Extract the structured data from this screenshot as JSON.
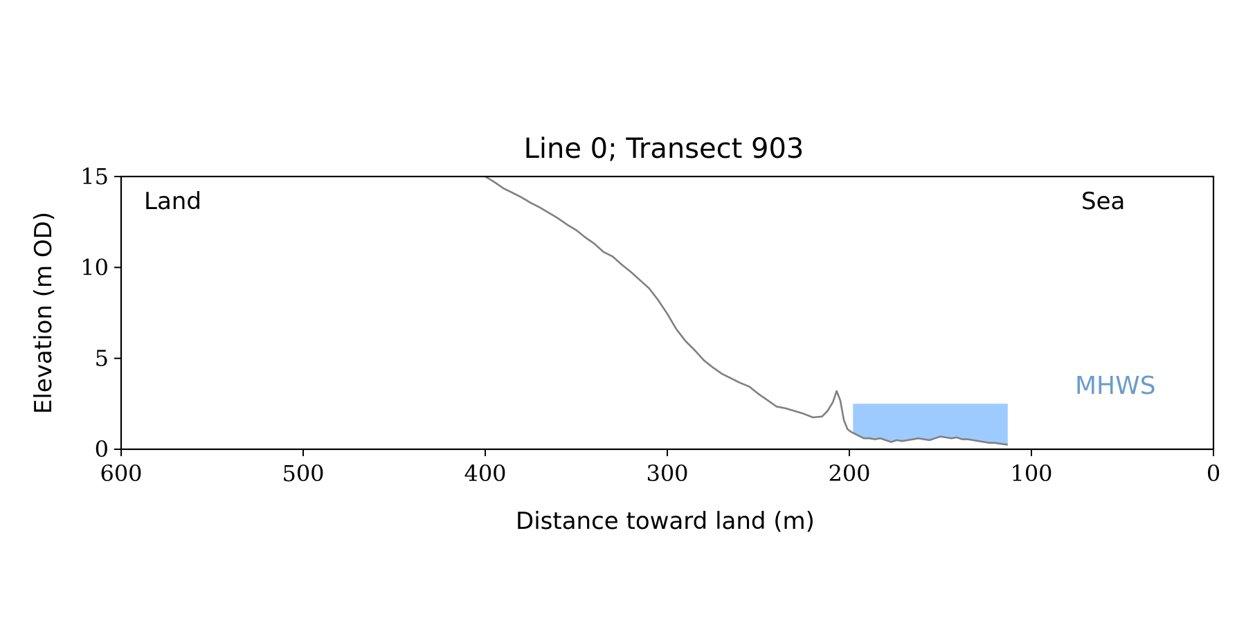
{
  "chart_data": {
    "type": "line",
    "title": "Line 0; Transect 903",
    "xlabel": "Distance toward land (m)",
    "ylabel": "Elevation (m OD)",
    "xlim": [
      600,
      0
    ],
    "ylim": [
      0,
      15
    ],
    "x_ticks": [
      600,
      500,
      400,
      300,
      200,
      100,
      0
    ],
    "y_ticks": [
      0,
      5,
      10,
      15
    ],
    "grid": false,
    "annotations": {
      "land": "Land",
      "sea": "Sea",
      "mhws": "MHWS"
    },
    "colors": {
      "profile": "#808080",
      "mhws_fill": "#9ecbff",
      "mhws_label": "#6a9ccc",
      "axis": "#000000"
    },
    "mhws_band": {
      "x_start": 198,
      "x_end": 113,
      "elevation": 2.5
    },
    "series": [
      {
        "x": [
          400,
          395,
          390,
          385,
          380,
          375,
          370,
          365,
          360,
          355,
          350,
          345,
          340,
          335,
          330,
          325,
          320,
          315,
          310,
          305,
          300,
          295,
          290,
          285,
          280,
          275,
          270,
          265,
          260,
          255,
          250,
          245,
          240,
          235,
          230,
          225,
          220,
          215,
          212,
          209,
          207,
          205,
          203,
          201,
          199,
          197,
          195,
          192,
          189,
          186,
          183,
          180,
          177,
          174,
          171,
          168,
          165,
          162,
          159,
          156,
          153,
          150,
          147,
          144,
          141,
          138,
          135,
          132,
          129,
          126,
          123,
          120,
          117,
          113
        ],
        "y": [
          15.0,
          14.7,
          14.35,
          14.1,
          13.85,
          13.55,
          13.3,
          13.0,
          12.7,
          12.35,
          12.05,
          11.65,
          11.3,
          10.85,
          10.6,
          10.15,
          9.75,
          9.3,
          8.85,
          8.2,
          7.45,
          6.6,
          5.95,
          5.45,
          4.9,
          4.5,
          4.15,
          3.9,
          3.65,
          3.45,
          3.05,
          2.7,
          2.35,
          2.25,
          2.1,
          1.95,
          1.75,
          1.8,
          2.1,
          2.6,
          3.2,
          2.7,
          1.6,
          1.1,
          0.95,
          0.85,
          0.75,
          0.6,
          0.6,
          0.55,
          0.6,
          0.5,
          0.4,
          0.5,
          0.45,
          0.5,
          0.55,
          0.6,
          0.55,
          0.5,
          0.6,
          0.7,
          0.65,
          0.6,
          0.65,
          0.55,
          0.55,
          0.5,
          0.45,
          0.4,
          0.35,
          0.35,
          0.3,
          0.25
        ]
      }
    ]
  }
}
